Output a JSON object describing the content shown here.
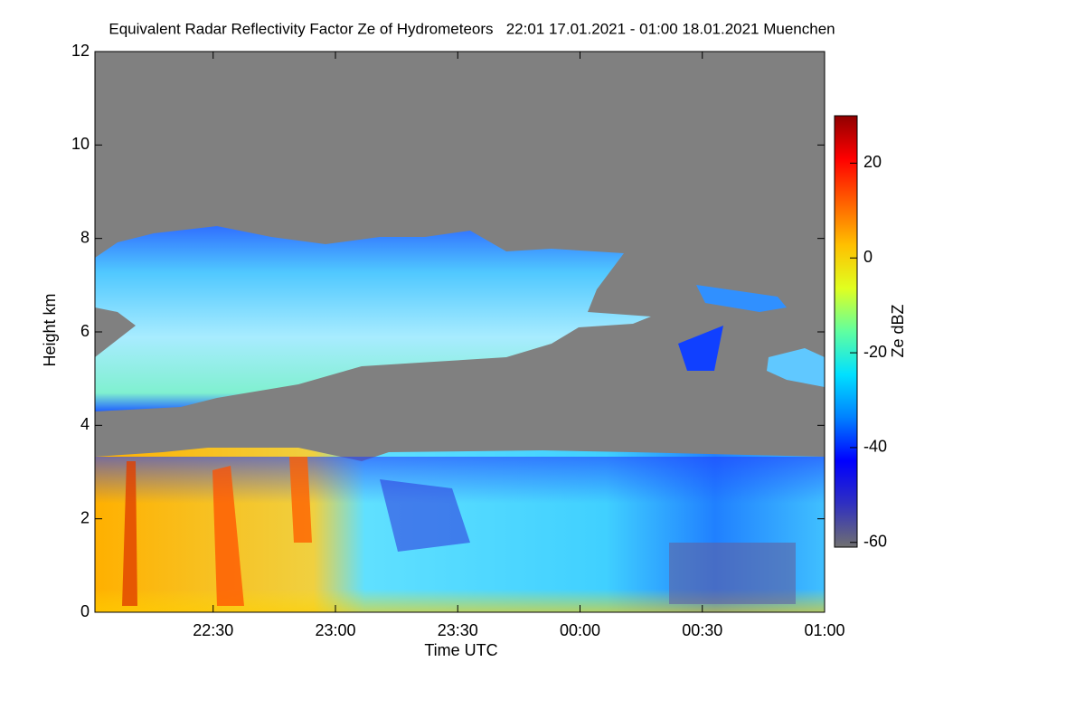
{
  "chart_data": {
    "type": "heatmap",
    "title": "Equivalent Radar Reflectivity Factor Ze of Hydrometeors   22:01 17.01.2021 - 01:00 18.01.2021 Muenchen",
    "xlabel": "Time UTC",
    "ylabel": "Height km",
    "xlim": [
      1321,
      1500
    ],
    "xticks": [
      {
        "value": 1350,
        "label": "22:30"
      },
      {
        "value": 1380,
        "label": "23:00"
      },
      {
        "value": 1410,
        "label": "23:30"
      },
      {
        "value": 1440,
        "label": "00:00"
      },
      {
        "value": 1470,
        "label": "00:30"
      },
      {
        "value": 1500,
        "label": "01:00"
      }
    ],
    "ylim": [
      0,
      12
    ],
    "yticks": [
      0,
      2,
      4,
      6,
      8,
      10,
      12
    ],
    "colorbar": {
      "label": "Ze dBZ",
      "lim": [
        -61,
        30
      ],
      "ticks": [
        -60,
        -40,
        -20,
        0,
        20
      ],
      "colors": [
        "#707070",
        "#3030c0",
        "#0000ff",
        "#0080ff",
        "#00e0ff",
        "#60ffa0",
        "#e0ff20",
        "#ffc000",
        "#ff6000",
        "#ff0000",
        "#900000"
      ]
    },
    "background": "#808080"
  }
}
